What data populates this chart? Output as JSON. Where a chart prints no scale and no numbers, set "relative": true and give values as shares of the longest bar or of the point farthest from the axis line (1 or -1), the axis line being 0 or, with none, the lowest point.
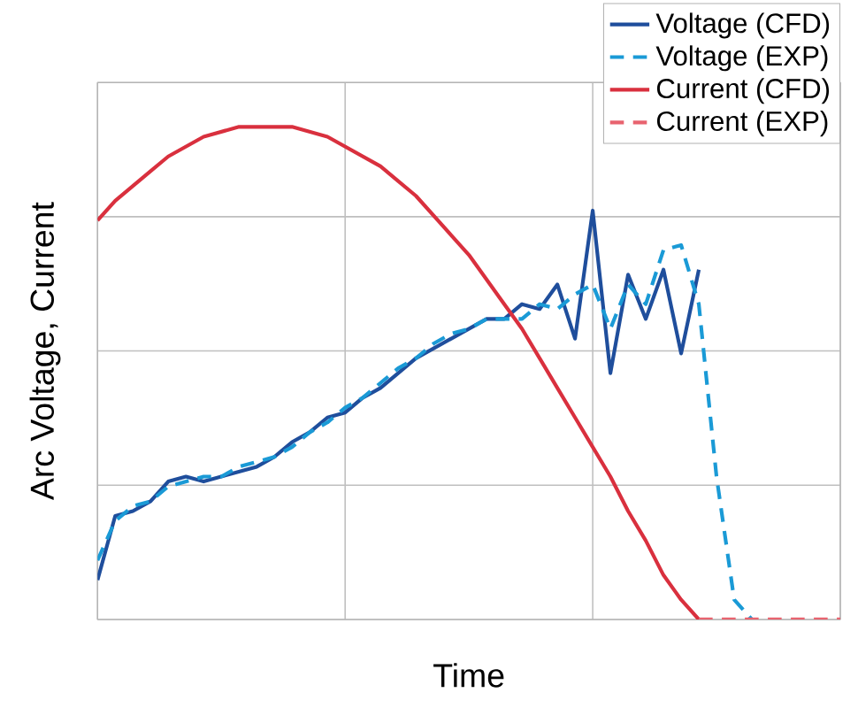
{
  "chart_data": {
    "type": "line",
    "relative": true,
    "xlabel": "Time",
    "ylabel": "Arc Voltage, Current",
    "grid": true,
    "legend": "top right",
    "categories": [
      null,
      null,
      null,
      null,
      null,
      null,
      null,
      null,
      null,
      null,
      null,
      null,
      null,
      null,
      null,
      null,
      null,
      null,
      null,
      null,
      null,
      null,
      null,
      null,
      null,
      null,
      null,
      null,
      null,
      null,
      null,
      null,
      null,
      null,
      null,
      null,
      null,
      null,
      null,
      null,
      null,
      null,
      null
    ],
    "series": [
      {
        "name": "Voltage (CFD)",
        "color": "#1f4e9c",
        "line_style": "solid",
        "values": [
          0.08,
          0.21,
          0.22,
          0.24,
          0.28,
          0.29,
          0.28,
          0.29,
          0.3,
          0.31,
          0.33,
          0.36,
          0.38,
          0.41,
          0.42,
          0.45,
          0.47,
          0.5,
          0.53,
          0.55,
          0.57,
          0.59,
          0.61,
          0.61,
          0.64,
          0.63,
          0.68,
          0.57,
          0.83,
          0.5,
          0.7,
          0.61,
          0.71,
          0.54,
          0.71,
          null,
          null,
          null,
          null,
          null,
          null,
          null,
          null
        ]
      },
      {
        "name": "Voltage (EXP)",
        "color": "#1a9ad6",
        "line_style": "dashed",
        "values": [
          0.12,
          0.2,
          0.23,
          0.24,
          0.27,
          0.28,
          0.29,
          0.29,
          0.31,
          0.32,
          0.33,
          0.35,
          0.38,
          0.4,
          0.43,
          0.45,
          0.48,
          0.51,
          0.53,
          0.56,
          0.58,
          0.59,
          0.61,
          0.61,
          0.61,
          0.64,
          0.63,
          0.66,
          0.68,
          0.59,
          0.68,
          0.64,
          0.75,
          0.76,
          0.64,
          0.29,
          0.04,
          0,
          null,
          null,
          null,
          null,
          null
        ]
      },
      {
        "name": "Current (CFD)",
        "color": "#d9303e",
        "line_style": "solid",
        "values": [
          0.81,
          0.85,
          0.88,
          0.91,
          0.94,
          0.96,
          0.98,
          0.99,
          1.0,
          1.0,
          1.0,
          1.0,
          0.99,
          0.98,
          0.96,
          0.94,
          0.92,
          0.89,
          0.86,
          0.82,
          0.78,
          0.74,
          0.69,
          0.64,
          0.59,
          0.53,
          0.47,
          0.41,
          0.35,
          0.29,
          0.22,
          0.16,
          0.09,
          0.04,
          0,
          null,
          null,
          null,
          null,
          null,
          null,
          null,
          null
        ]
      },
      {
        "name": "Current (EXP)",
        "color": "#e8636f",
        "line_style": "dashed",
        "values": [
          null,
          null,
          null,
          null,
          null,
          null,
          null,
          null,
          null,
          null,
          null,
          null,
          null,
          null,
          null,
          null,
          null,
          null,
          null,
          null,
          null,
          null,
          null,
          null,
          null,
          null,
          null,
          null,
          null,
          null,
          null,
          null,
          null,
          null,
          0,
          0,
          0,
          0,
          0,
          0,
          0,
          0,
          0
        ]
      }
    ]
  }
}
